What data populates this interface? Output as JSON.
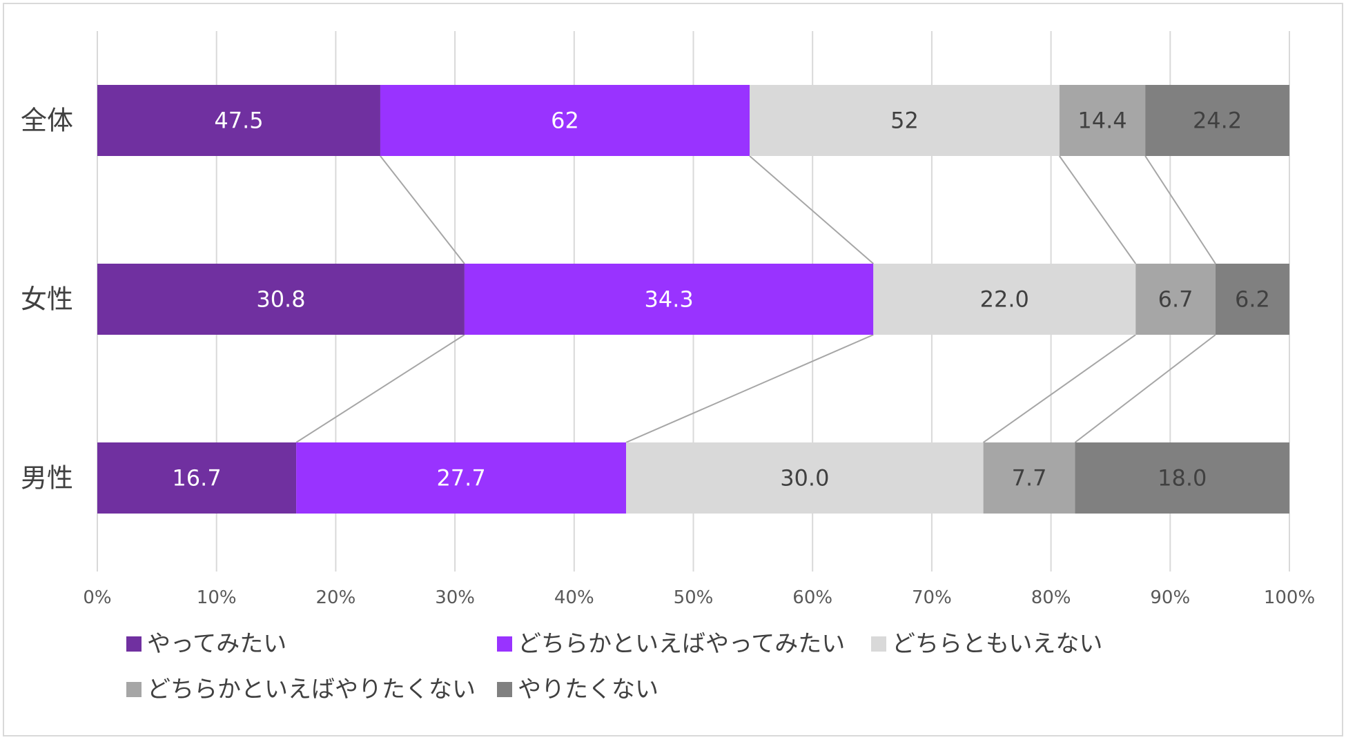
{
  "chart_data": {
    "type": "bar",
    "orientation": "horizontal",
    "stacked": "percent",
    "categories": [
      "全体",
      "女性",
      "男性"
    ],
    "series": [
      {
        "name": "やってみたい",
        "values": [
          47.5,
          30.8,
          16.7
        ],
        "labels": [
          "47.5",
          "30.8",
          "16.7"
        ],
        "color": "#7030a0",
        "label_color": "#ffffff"
      },
      {
        "name": "どちらかといえばやってみたい",
        "values": [
          62,
          34.3,
          27.7
        ],
        "labels": [
          "62",
          "34.3",
          "27.7"
        ],
        "color": "#9933ff",
        "label_color": "#ffffff"
      },
      {
        "name": "どちらともいえない",
        "values": [
          52,
          22.0,
          30.0
        ],
        "labels": [
          "52",
          "22.0",
          "30.0"
        ],
        "color": "#d9d9d9",
        "label_color": "#404040"
      },
      {
        "name": "どちらかといえばやりたくない",
        "values": [
          14.4,
          6.7,
          7.7
        ],
        "labels": [
          "14.4",
          "6.7",
          "7.7"
        ],
        "color": "#a6a6a6",
        "label_color": "#404040"
      },
      {
        "name": "やりたくない",
        "values": [
          24.2,
          6.2,
          18.0
        ],
        "labels": [
          "24.2",
          "6.2",
          "18.0"
        ],
        "color": "#808080",
        "label_color": "#404040"
      }
    ],
    "xaxis": {
      "ticks": [
        0,
        10,
        20,
        30,
        40,
        50,
        60,
        70,
        80,
        90,
        100
      ],
      "tick_labels": [
        "0%",
        "10%",
        "20%",
        "30%",
        "40%",
        "50%",
        "60%",
        "70%",
        "80%",
        "90%",
        "100%"
      ],
      "range": [
        0,
        100
      ]
    },
    "title": "",
    "xlabel": "",
    "ylabel": "",
    "grid": "vertical",
    "series_lines": true,
    "legend": "bottom",
    "colors": {
      "grid": "#d9d9d9",
      "series_line": "#a6a6a6",
      "axis_text": "#595959",
      "category_text": "#404040",
      "border": "#d9d9d9"
    }
  }
}
